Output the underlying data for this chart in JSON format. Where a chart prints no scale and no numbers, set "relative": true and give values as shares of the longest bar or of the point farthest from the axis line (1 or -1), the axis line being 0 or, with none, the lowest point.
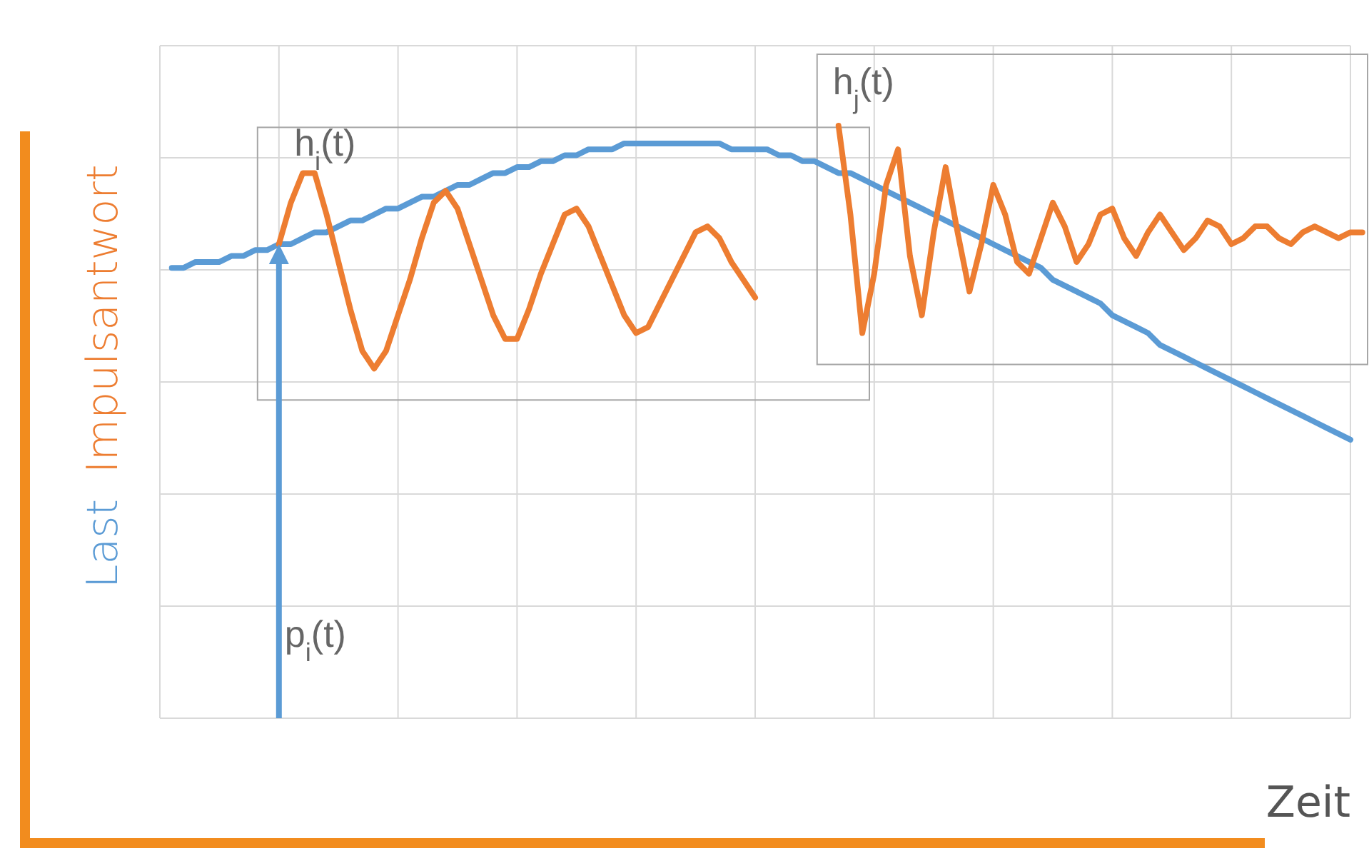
{
  "chart_data": {
    "type": "line",
    "relative": true,
    "xlabel": "Zeit",
    "grid": true,
    "line_style": "solid",
    "categories": [
      null,
      null,
      null,
      null,
      null,
      null,
      null,
      null,
      null,
      null,
      null,
      null,
      null,
      null,
      null,
      null,
      null,
      null,
      null,
      null,
      null,
      null,
      null,
      null,
      null,
      null,
      null,
      null,
      null,
      null,
      null,
      null,
      null,
      null,
      null,
      null,
      null,
      null,
      null,
      null,
      null,
      null,
      null,
      null,
      null,
      null,
      null,
      null,
      null,
      null,
      null,
      null,
      null,
      null,
      null,
      null,
      null,
      null,
      null,
      null,
      null,
      null,
      null,
      null,
      null,
      null,
      null,
      null,
      null,
      null,
      null,
      null,
      null,
      null,
      null,
      null,
      null,
      null,
      null,
      null,
      null,
      null,
      null,
      null,
      null,
      null,
      null,
      null,
      null,
      null,
      null,
      null,
      null,
      null,
      null,
      null,
      null,
      null,
      null,
      null,
      null,
      null
    ],
    "series": [
      {
        "name": "Last",
        "color": "#5b9bd5",
        "values": [
          null,
          0.76,
          0.76,
          0.77,
          0.77,
          0.77,
          0.78,
          0.78,
          0.79,
          0.79,
          0.8,
          0.8,
          0.81,
          0.82,
          0.82,
          0.83,
          0.84,
          0.84,
          0.85,
          0.86,
          0.86,
          0.87,
          0.88,
          0.88,
          0.89,
          0.9,
          0.9,
          0.91,
          0.92,
          0.92,
          0.93,
          0.93,
          0.94,
          0.94,
          0.95,
          0.95,
          0.96,
          0.96,
          0.96,
          0.97,
          0.97,
          0.97,
          0.97,
          0.97,
          0.97,
          0.97,
          0.97,
          0.97,
          0.96,
          0.96,
          0.96,
          0.96,
          0.95,
          0.95,
          0.94,
          0.94,
          0.93,
          0.92,
          0.92,
          0.91,
          0.9,
          0.89,
          0.88,
          0.87,
          0.86,
          0.85,
          0.84,
          0.83,
          0.82,
          0.81,
          0.8,
          0.79,
          0.78,
          0.77,
          0.76,
          0.74,
          0.73,
          0.72,
          0.71,
          0.7,
          0.68,
          0.67,
          0.66,
          0.65,
          0.63,
          0.62,
          0.61,
          0.6,
          0.59,
          0.58,
          0.57,
          0.56,
          0.55,
          0.54,
          0.53,
          0.52,
          0.51,
          0.5,
          0.49,
          0.48,
          0.47,
          null
        ]
      },
      {
        "name": "Impulsantwort",
        "color": "#ed7d31",
        "values": [
          null,
          null,
          null,
          null,
          null,
          null,
          null,
          null,
          null,
          null,
          0.8,
          0.87,
          0.92,
          0.92,
          0.85,
          0.77,
          0.69,
          0.62,
          0.59,
          0.62,
          0.68,
          0.74,
          0.81,
          0.87,
          0.89,
          0.86,
          0.8,
          0.74,
          0.68,
          0.64,
          0.64,
          0.69,
          0.75,
          0.8,
          0.85,
          0.86,
          0.83,
          0.78,
          0.73,
          0.68,
          0.65,
          0.66,
          0.7,
          0.74,
          0.78,
          0.82,
          0.83,
          0.81,
          0.77,
          0.74,
          0.71,
          null,
          null,
          null,
          null,
          null,
          null,
          null,
          null,
          null,
          null,
          null,
          null,
          null,
          null,
          null,
          null,
          null,
          null,
          null,
          null,
          null,
          null,
          null,
          null,
          null,
          null,
          null,
          null,
          null,
          null,
          null,
          null,
          null,
          null,
          null,
          null,
          null,
          null,
          null,
          null,
          null,
          null,
          null,
          null,
          null,
          null,
          null,
          null,
          null,
          null,
          null
        ]
      },
      {
        "color": "#ed7d31",
        "values": [
          null,
          null,
          null,
          null,
          null,
          null,
          null,
          null,
          null,
          null,
          null,
          null,
          null,
          null,
          null,
          null,
          null,
          null,
          null,
          null,
          null,
          null,
          null,
          null,
          null,
          null,
          null,
          null,
          null,
          null,
          null,
          null,
          null,
          null,
          null,
          null,
          null,
          null,
          null,
          null,
          null,
          null,
          null,
          null,
          null,
          null,
          null,
          null,
          null,
          null,
          null,
          null,
          null,
          null,
          null,
          null,
          null,
          1.0,
          0.85,
          0.65,
          0.75,
          0.9,
          0.96,
          0.78,
          0.68,
          0.82,
          0.93,
          0.82,
          0.72,
          0.8,
          0.9,
          0.85,
          0.77,
          0.75,
          0.81,
          0.87,
          0.83,
          0.77,
          0.8,
          0.85,
          0.86,
          0.81,
          0.78,
          0.82,
          0.85,
          0.82,
          0.79,
          0.81,
          0.84,
          0.83,
          0.8,
          0.81,
          0.83,
          0.83,
          0.81,
          0.8,
          0.82,
          0.83,
          0.82,
          0.81,
          0.82,
          0.82
        ]
      }
    ],
    "annotations": [
      "h$_{i}$(t)",
      "h$_{j}$(t)",
      "p$_{i}$(t)"
    ]
  }
}
